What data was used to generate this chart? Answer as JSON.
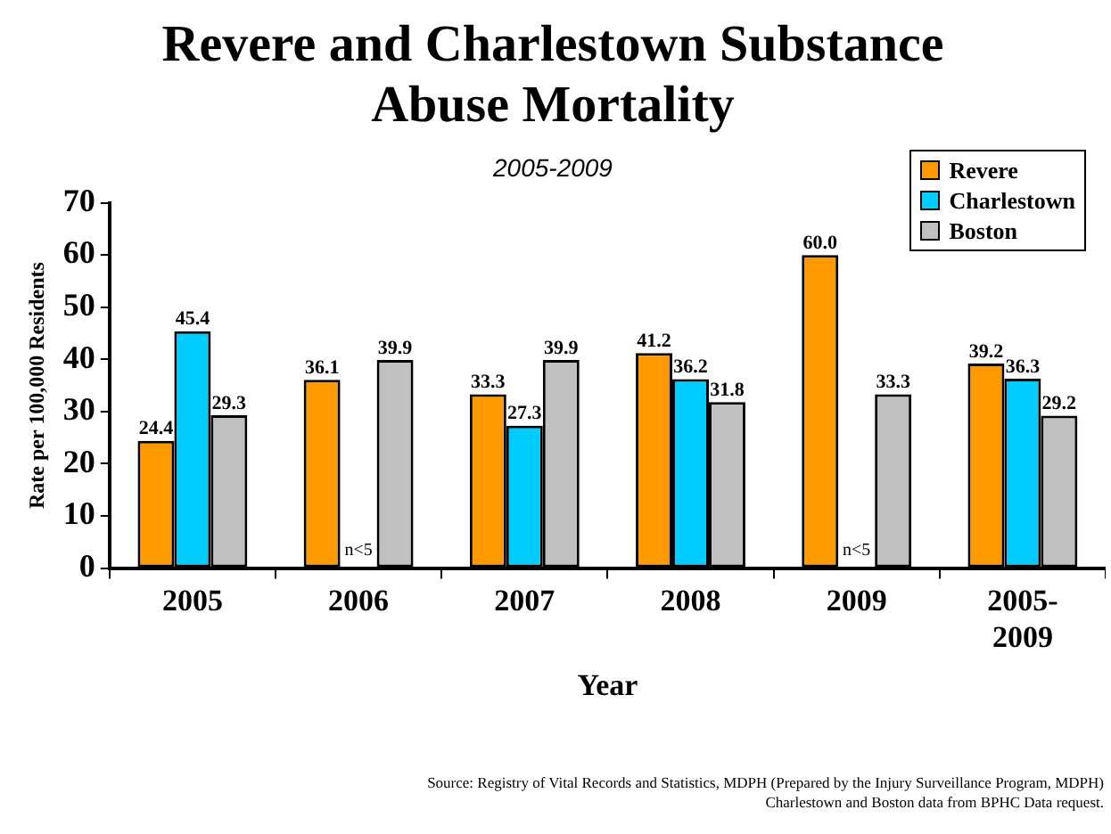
{
  "chart_data": {
    "type": "bar",
    "title": "Revere and Charlestown Substance Abuse Mortality",
    "subtitle": "2005-2009",
    "xlabel": "Year",
    "ylabel": "Rate per 100,000 Residents",
    "categories": [
      "2005",
      "2006",
      "2007",
      "2008",
      "2009",
      "2005-2009"
    ],
    "series": [
      {
        "name": "Revere",
        "color": "#ff9900",
        "values": [
          24.4,
          36.1,
          33.3,
          41.2,
          60.0,
          39.2
        ],
        "value_labels": [
          "24.4",
          "36.1",
          "33.3",
          "41.2",
          "60.0",
          "39.2"
        ]
      },
      {
        "name": "Charlestown",
        "color": "#00ccff",
        "values": [
          45.4,
          null,
          27.3,
          36.2,
          null,
          36.3
        ],
        "value_labels": [
          "45.4",
          "n<5",
          "27.3",
          "36.2",
          "n<5",
          "36.3"
        ]
      },
      {
        "name": "Boston",
        "color": "#c0c0c0",
        "values": [
          29.3,
          39.9,
          39.9,
          31.8,
          33.3,
          29.2
        ],
        "value_labels": [
          "29.3",
          "39.9",
          "39.9",
          "31.8",
          "33.3",
          "29.2"
        ]
      }
    ],
    "ylim": [
      0,
      70
    ],
    "yticks": [
      0,
      10,
      20,
      30,
      40,
      50,
      60,
      70
    ],
    "grid": false,
    "legend": "top right",
    "annotations": [
      "Source: Registry of Vital Records and Statistics, MDPH (Prepared by the Injury Surveillance Program, MDPH)",
      "Charlestown and Boston data from BPHC Data request."
    ]
  }
}
